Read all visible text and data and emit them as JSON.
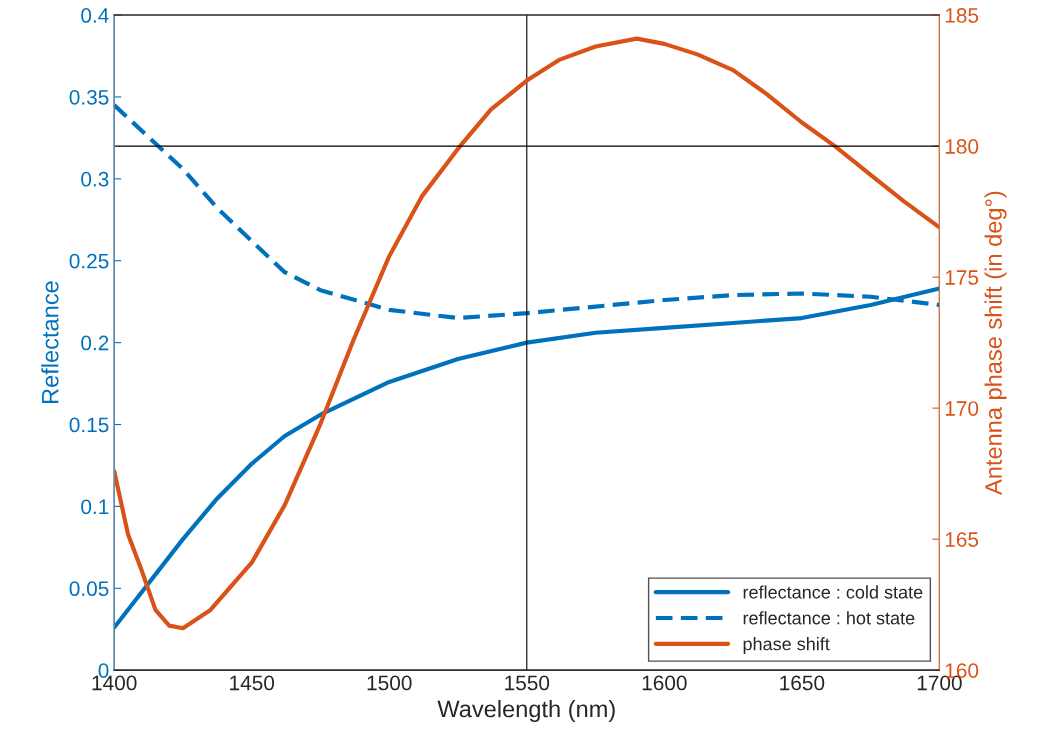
{
  "chart_data": {
    "type": "line",
    "xlabel": "Wavelength (nm)",
    "ylabel": "Reflectance",
    "y2label": "Antenna phase shift (in deg°)",
    "xlim": [
      1400,
      1700
    ],
    "xticks": [
      1400,
      1450,
      1500,
      1550,
      1600,
      1650,
      1700
    ],
    "ylim": [
      0,
      0.4
    ],
    "yticks": [
      0,
      0.05,
      0.1,
      0.15,
      0.2,
      0.25,
      0.3,
      0.35,
      0.4
    ],
    "y2lim": [
      160,
      185
    ],
    "y2ticks": [
      160,
      165,
      170,
      175,
      180,
      185
    ],
    "legend": "bottom right",
    "grid": false,
    "ref_lines": [
      {
        "axis": "x",
        "value": 1550,
        "color": "#000000"
      },
      {
        "axis": "y2",
        "value": 180,
        "color": "#000000"
      }
    ],
    "series": [
      {
        "name": "reflectance : cold state",
        "color": "#0072bd",
        "line_style": "solid",
        "x": [
          1400,
          1425,
          1437,
          1450,
          1462,
          1475,
          1500,
          1525,
          1550,
          1575,
          1600,
          1625,
          1650,
          1675,
          1700
        ],
        "values": [
          0.026,
          0.08,
          0.104,
          0.126,
          0.143,
          0.156,
          0.176,
          0.19,
          0.2,
          0.206,
          0.209,
          0.212,
          0.215,
          0.223,
          0.233
        ]
      },
      {
        "name": "reflectance : hot state",
        "color": "#0072bd",
        "line_style": "dashed",
        "x": [
          1400,
          1425,
          1437,
          1450,
          1462,
          1475,
          1500,
          1525,
          1550,
          1575,
          1600,
          1625,
          1650,
          1675,
          1700
        ],
        "values": [
          0.345,
          0.306,
          0.283,
          0.262,
          0.243,
          0.232,
          0.22,
          0.215,
          0.218,
          0.222,
          0.226,
          0.229,
          0.23,
          0.228,
          0.223
        ]
      },
      {
        "name": "phase shift",
        "color": "#d95319",
        "line_style": "solid",
        "axis": "y2",
        "x": [
          1400,
          1405,
          1410,
          1415,
          1420,
          1425,
          1435,
          1450,
          1462,
          1475,
          1487,
          1500,
          1512,
          1525,
          1537,
          1550,
          1562,
          1575,
          1590,
          1600,
          1612,
          1625,
          1637,
          1650,
          1662,
          1675,
          1687,
          1700
        ],
        "values": [
          167.6,
          165.2,
          163.8,
          162.3,
          161.7,
          161.6,
          162.3,
          164.1,
          166.3,
          169.4,
          172.6,
          175.8,
          178.1,
          179.9,
          181.4,
          182.5,
          183.3,
          183.8,
          184.1,
          183.9,
          183.5,
          182.9,
          182.0,
          180.9,
          180.0,
          178.9,
          177.9,
          176.9
        ]
      }
    ]
  }
}
